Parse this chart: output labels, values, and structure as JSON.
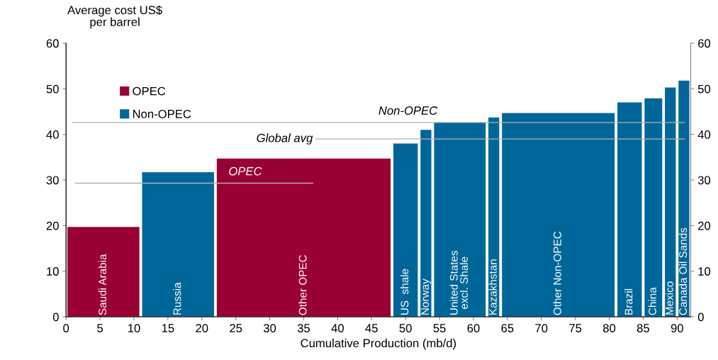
{
  "chart_data": {
    "type": "histogram",
    "ylabel": "Average cost US$\nper barrel",
    "xlabel": "Cumulative Production (mb/d)",
    "bins": [
      0,
      11,
      22,
      48,
      52,
      54,
      62,
      64,
      81,
      85,
      88,
      90,
      92
    ],
    "categories": [
      "Saudi Arabia",
      "Russia",
      "Other OPEC",
      "US  shale",
      "Norway",
      "United States\nexcl. Shale",
      "Kazakhstan",
      "Other Non-OPEC",
      "Brazil",
      "China",
      "Mexico",
      "Canada Oil Sands"
    ],
    "series": [
      {
        "name": "OPEC",
        "color": "#990033",
        "values": [
          19.7,
          null,
          34.7,
          null,
          null,
          null,
          null,
          null,
          null,
          null,
          null,
          null
        ]
      },
      {
        "name": "Non-OPEC",
        "color": "#006699",
        "values": [
          null,
          31.7,
          null,
          38.0,
          41.0,
          42.6,
          43.7,
          44.7,
          47.0,
          47.9,
          50.3,
          51.8
        ]
      }
    ],
    "ref_lines": [
      {
        "axis": "y",
        "value": 42.6,
        "label": "Non-OPEC",
        "color": "#b0b0b0"
      },
      {
        "axis": "y",
        "value": 39.0,
        "label": "Global avg",
        "color": "#b0b0b0"
      },
      {
        "axis": "y",
        "value": 29.3,
        "label": "OPEC",
        "color": "#b0b0b0"
      }
    ],
    "xlim": [
      0,
      92
    ],
    "xticks": [
      0,
      5,
      10,
      15,
      20,
      25,
      30,
      35,
      40,
      45,
      50,
      55,
      60,
      65,
      70,
      75,
      80,
      85,
      90
    ],
    "ylim": [
      0,
      60
    ],
    "yticks": [
      0,
      10,
      20,
      30,
      40,
      50,
      60
    ],
    "y2lim": [
      0,
      60
    ],
    "y2ticks": [
      0,
      10,
      20,
      30,
      40,
      50,
      60
    ],
    "grid": false,
    "legend": "top left"
  }
}
